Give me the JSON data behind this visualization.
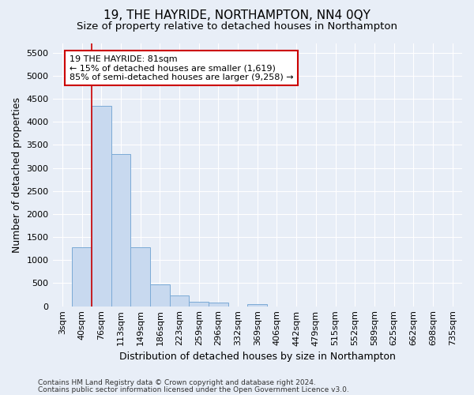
{
  "title": "19, THE HAYRIDE, NORTHAMPTON, NN4 0QY",
  "subtitle": "Size of property relative to detached houses in Northampton",
  "xlabel": "Distribution of detached houses by size in Northampton",
  "ylabel": "Number of detached properties",
  "categories": [
    "3sqm",
    "40sqm",
    "76sqm",
    "113sqm",
    "149sqm",
    "186sqm",
    "223sqm",
    "259sqm",
    "296sqm",
    "332sqm",
    "369sqm",
    "406sqm",
    "442sqm",
    "479sqm",
    "515sqm",
    "552sqm",
    "589sqm",
    "625sqm",
    "662sqm",
    "698sqm",
    "735sqm"
  ],
  "values": [
    0,
    1280,
    4350,
    3300,
    1280,
    480,
    240,
    100,
    75,
    0,
    50,
    0,
    0,
    0,
    0,
    0,
    0,
    0,
    0,
    0,
    0
  ],
  "bar_color": "#c8d9ef",
  "bar_edge_color": "#7baad6",
  "vline_color": "#cc0000",
  "annotation_text": "19 THE HAYRIDE: 81sqm\n← 15% of detached houses are smaller (1,619)\n85% of semi-detached houses are larger (9,258) →",
  "annotation_box_color": "white",
  "annotation_box_edge_color": "#cc0000",
  "ylim": [
    0,
    5700
  ],
  "yticks": [
    0,
    500,
    1000,
    1500,
    2000,
    2500,
    3000,
    3500,
    4000,
    4500,
    5000,
    5500
  ],
  "footer_line1": "Contains HM Land Registry data © Crown copyright and database right 2024.",
  "footer_line2": "Contains public sector information licensed under the Open Government Licence v3.0.",
  "background_color": "#e8eef7",
  "plot_bg_color": "#e8eef7",
  "grid_color": "white",
  "title_fontsize": 11,
  "subtitle_fontsize": 9.5,
  "axis_label_fontsize": 9,
  "tick_fontsize": 8,
  "annotation_fontsize": 8,
  "vline_x_index": 2
}
